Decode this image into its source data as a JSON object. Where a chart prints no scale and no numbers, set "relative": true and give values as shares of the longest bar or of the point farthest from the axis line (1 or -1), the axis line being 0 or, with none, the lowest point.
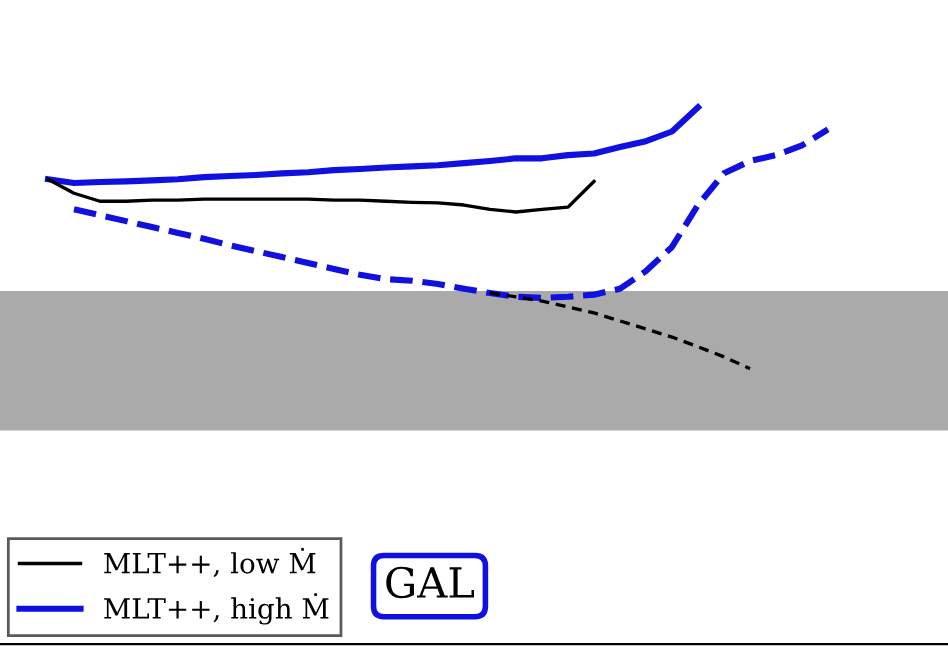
{
  "chart_data": {
    "type": "line",
    "relative": true,
    "categories": [
      null,
      null,
      null,
      null,
      null,
      null,
      null,
      null,
      null,
      null,
      null,
      null,
      null,
      null,
      null,
      null,
      null,
      null,
      null,
      null,
      null,
      null,
      null,
      null,
      null,
      null,
      null,
      null,
      null,
      null,
      null
    ],
    "series": [
      {
        "name": "MLT++, low Ṁ",
        "color": "#000000",
        "line_style": "solid",
        "values": [
          0.866,
          0.84,
          0.825,
          0.825,
          0.827,
          0.827,
          0.829,
          0.829,
          0.829,
          0.829,
          0.829,
          0.827,
          0.827,
          0.825,
          0.823,
          0.822,
          0.818,
          0.81,
          0.805,
          0.81,
          0.814,
          0.862,
          null,
          null,
          null,
          null,
          null,
          null,
          null,
          null,
          null
        ]
      },
      {
        "name": "MLT++, high Ṁ",
        "color": "#1010e0",
        "line_style": "solid",
        "values": [
          0.866,
          0.859,
          0.861,
          0.862,
          0.864,
          0.866,
          0.87,
          0.872,
          0.874,
          0.877,
          0.879,
          0.883,
          0.885,
          0.888,
          0.89,
          0.892,
          0.896,
          0.9,
          0.905,
          0.905,
          0.911,
          0.914,
          0.926,
          0.937,
          0.955,
          1.0,
          null,
          null,
          null,
          null,
          null
        ]
      },
      {
        "color": "#000000",
        "line_style": "dashed",
        "values": [
          null,
          null,
          null,
          null,
          null,
          null,
          null,
          null,
          null,
          null,
          null,
          null,
          null,
          null,
          null,
          null,
          null,
          0.654,
          0.647,
          0.639,
          0.628,
          0.617,
          0.602,
          0.587,
          0.572,
          0.554,
          0.535,
          0.513,
          null,
          null,
          null
        ]
      },
      {
        "color": "#1010e0",
        "line_style": "dashed",
        "values": [
          null,
          0.81,
          0.799,
          0.788,
          0.777,
          0.766,
          0.755,
          0.743,
          0.732,
          0.721,
          0.71,
          0.699,
          0.688,
          0.68,
          0.677,
          0.671,
          0.662,
          0.654,
          0.647,
          0.645,
          0.647,
          0.651,
          0.662,
          0.695,
          0.74,
          0.818,
          0.877,
          0.9,
          0.911,
          0.929,
          0.959
        ]
      }
    ],
    "bands": [
      {
        "axis": "y",
        "from": 0.398,
        "to": 0.658,
        "color": "#aaaaaa"
      }
    ],
    "annotations": [
      "GAL"
    ],
    "legend": "bottom left"
  }
}
